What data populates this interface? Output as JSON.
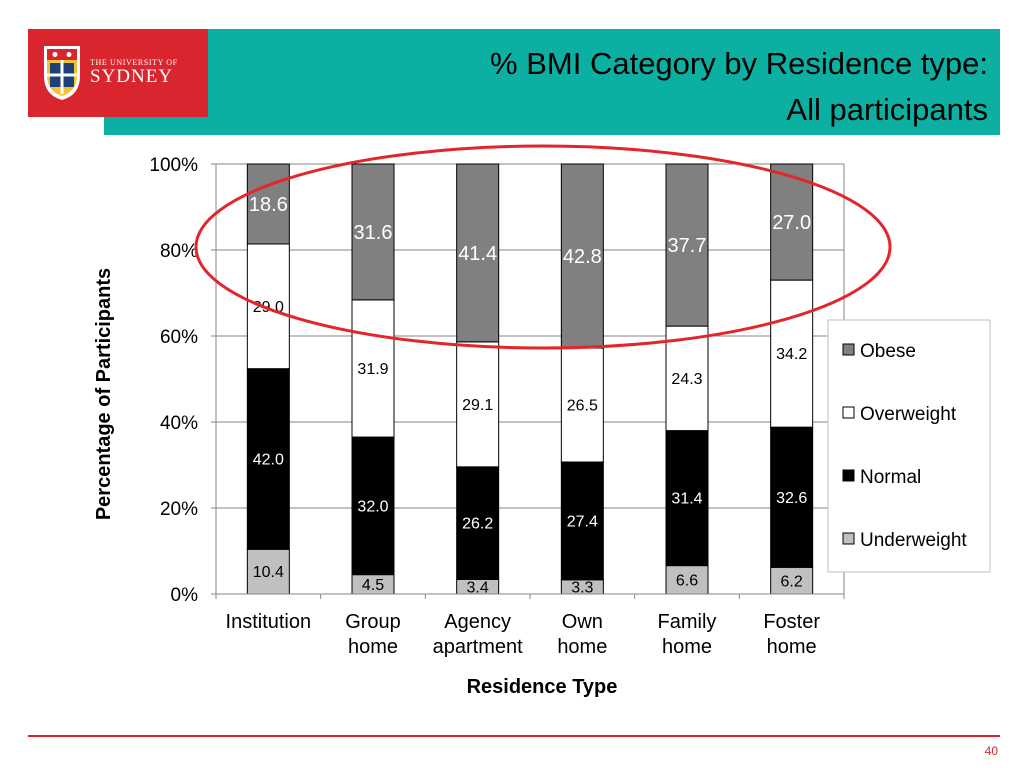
{
  "header": {
    "logo_small": "THE UNIVERSITY OF",
    "logo_big": "SYDNEY",
    "title_line1": "% BMI Category by Residence type:",
    "title_line2": "All participants"
  },
  "colors": {
    "header_teal": "#0bb0a3",
    "brand_red": "#d9262e",
    "obese": "#808080",
    "overweight": "#ffffff",
    "normal": "#000000",
    "underweight": "#c0c0c0",
    "highlight_ellipse": "#e3262b"
  },
  "chart_data": {
    "type": "bar",
    "stacked": true,
    "normalized_percent": true,
    "categories": [
      [
        "Institution"
      ],
      [
        "Group",
        "home"
      ],
      [
        "Agency",
        "apartment"
      ],
      [
        "Own",
        "home"
      ],
      [
        "Family",
        "home"
      ],
      [
        "Foster",
        "home"
      ]
    ],
    "series": [
      {
        "name": "Underweight",
        "values": [
          10.4,
          4.5,
          3.4,
          3.3,
          6.6,
          6.2
        ]
      },
      {
        "name": "Normal",
        "values": [
          42.0,
          32.0,
          26.2,
          27.4,
          31.4,
          32.6
        ]
      },
      {
        "name": "Overweight",
        "values": [
          29.0,
          31.9,
          29.1,
          26.5,
          24.3,
          34.2
        ]
      },
      {
        "name": "Obese",
        "values": [
          18.6,
          31.6,
          41.4,
          42.8,
          37.7,
          27.0
        ]
      }
    ],
    "legend_order": [
      "Obese",
      "Overweight",
      "Normal",
      "Underweight"
    ],
    "xlabel": "Residence Type",
    "ylabel": "Percentage of Participants",
    "ylim": [
      0,
      100
    ],
    "yticks": [
      "0%",
      "20%",
      "40%",
      "60%",
      "80%",
      "100%"
    ],
    "legend_position": "right",
    "grid": true,
    "annotation": "ellipse highlighting the Obese segments"
  },
  "footer": {
    "page_number": "40"
  }
}
